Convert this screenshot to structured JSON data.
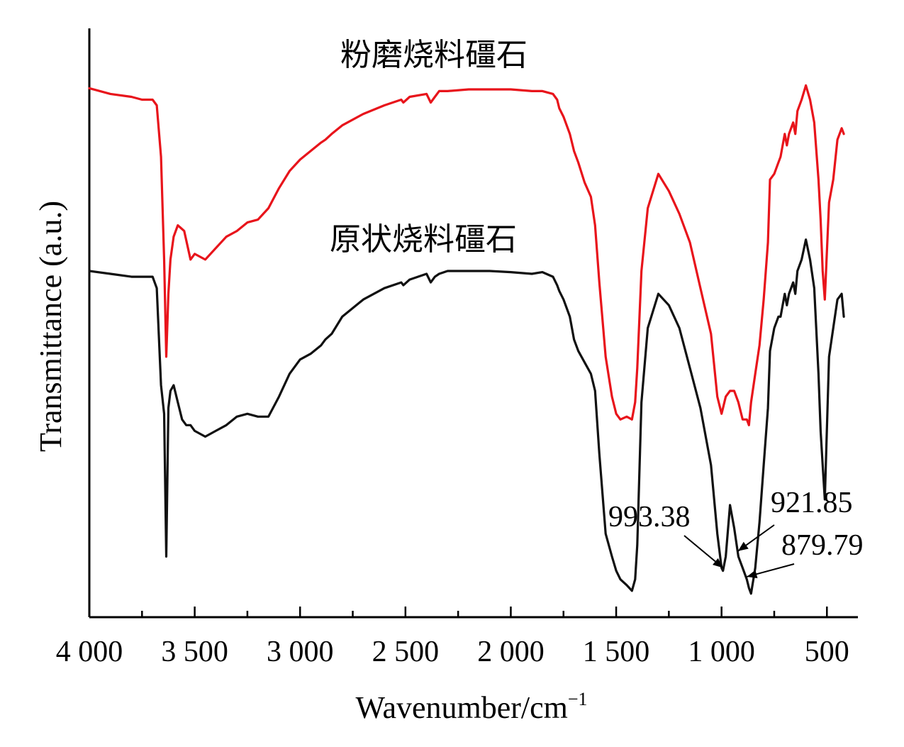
{
  "chart_data": {
    "type": "line",
    "title": "",
    "xlabel": "Wavenumber/cm",
    "xlabel_sup": "−1",
    "ylabel": "Transmittance (a.u.)",
    "xlim": [
      4000,
      400
    ],
    "x_reversed": true,
    "ylim": [
      0,
      1
    ],
    "y_ticks_shown": false,
    "grid": false,
    "legend": "none (series labeled inline)",
    "x_ticks": [
      {
        "value": 4000,
        "label": "4 000"
      },
      {
        "value": 3500,
        "label": "3 500"
      },
      {
        "value": 3000,
        "label": "3 000"
      },
      {
        "value": 2500,
        "label": "2 500"
      },
      {
        "value": 2000,
        "label": "2 000"
      },
      {
        "value": 1500,
        "label": "1 500"
      },
      {
        "value": 1000,
        "label": "1 000"
      },
      {
        "value": 500,
        "label": "500"
      }
    ],
    "series": [
      {
        "name": "粉磨烧料礓石",
        "color": "#e8141b",
        "x": [
          4000,
          3900,
          3800,
          3750,
          3700,
          3680,
          3660,
          3645,
          3635,
          3625,
          3615,
          3600,
          3580,
          3550,
          3520,
          3500,
          3450,
          3400,
          3350,
          3300,
          3250,
          3200,
          3150,
          3100,
          3050,
          3000,
          2950,
          2900,
          2880,
          2850,
          2800,
          2700,
          2600,
          2520,
          2510,
          2480,
          2400,
          2380,
          2360,
          2340,
          2300,
          2200,
          2100,
          2000,
          1900,
          1850,
          1800,
          1780,
          1770,
          1750,
          1720,
          1700,
          1680,
          1650,
          1620,
          1600,
          1580,
          1550,
          1520,
          1500,
          1480,
          1450,
          1425,
          1410,
          1400,
          1380,
          1350,
          1300,
          1250,
          1200,
          1150,
          1100,
          1050,
          1020,
          1000,
          993,
          980,
          960,
          940,
          920,
          900,
          880,
          870,
          860,
          840,
          820,
          800,
          780,
          770,
          750,
          730,
          720,
          700,
          690,
          680,
          660,
          650,
          640,
          620,
          600,
          580,
          560,
          540,
          530,
          520,
          510,
          490,
          470,
          450,
          430,
          420
        ],
        "y": [
          0.92,
          0.91,
          0.905,
          0.9,
          0.9,
          0.89,
          0.8,
          0.62,
          0.45,
          0.56,
          0.62,
          0.66,
          0.68,
          0.67,
          0.62,
          0.63,
          0.62,
          0.64,
          0.66,
          0.67,
          0.685,
          0.69,
          0.71,
          0.745,
          0.775,
          0.795,
          0.81,
          0.825,
          0.83,
          0.84,
          0.855,
          0.875,
          0.89,
          0.9,
          0.895,
          0.905,
          0.91,
          0.895,
          0.905,
          0.915,
          0.915,
          0.918,
          0.918,
          0.918,
          0.915,
          0.915,
          0.91,
          0.9,
          0.885,
          0.87,
          0.84,
          0.81,
          0.79,
          0.755,
          0.73,
          0.68,
          0.58,
          0.45,
          0.38,
          0.35,
          0.34,
          0.345,
          0.34,
          0.37,
          0.43,
          0.6,
          0.71,
          0.77,
          0.74,
          0.7,
          0.65,
          0.57,
          0.49,
          0.38,
          0.35,
          0.36,
          0.38,
          0.39,
          0.39,
          0.37,
          0.34,
          0.34,
          0.33,
          0.37,
          0.42,
          0.47,
          0.55,
          0.65,
          0.76,
          0.77,
          0.79,
          0.8,
          0.84,
          0.82,
          0.84,
          0.86,
          0.84,
          0.88,
          0.9,
          0.925,
          0.9,
          0.86,
          0.76,
          0.69,
          0.6,
          0.55,
          0.72,
          0.76,
          0.83,
          0.85,
          0.84
        ]
      },
      {
        "name": "原状烧料礓石",
        "color": "#111111",
        "x": [
          4000,
          3900,
          3800,
          3750,
          3700,
          3680,
          3660,
          3645,
          3635,
          3625,
          3615,
          3600,
          3580,
          3560,
          3540,
          3520,
          3500,
          3450,
          3400,
          3350,
          3300,
          3250,
          3200,
          3150,
          3100,
          3050,
          3000,
          2950,
          2900,
          2880,
          2850,
          2800,
          2700,
          2600,
          2520,
          2510,
          2480,
          2400,
          2380,
          2360,
          2340,
          2300,
          2200,
          2100,
          2000,
          1900,
          1850,
          1800,
          1780,
          1770,
          1750,
          1720,
          1700,
          1680,
          1650,
          1620,
          1600,
          1580,
          1550,
          1520,
          1500,
          1480,
          1450,
          1425,
          1410,
          1400,
          1380,
          1350,
          1300,
          1250,
          1200,
          1150,
          1100,
          1050,
          1020,
          1000,
          993,
          980,
          960,
          940,
          920,
          900,
          880,
          870,
          860,
          840,
          820,
          800,
          780,
          770,
          750,
          730,
          720,
          700,
          690,
          680,
          660,
          650,
          640,
          620,
          600,
          580,
          560,
          540,
          530,
          520,
          510,
          490,
          470,
          450,
          430,
          420
        ],
        "y": [
          0.6,
          0.595,
          0.59,
          0.59,
          0.59,
          0.57,
          0.4,
          0.35,
          0.1,
          0.36,
          0.39,
          0.4,
          0.37,
          0.34,
          0.33,
          0.33,
          0.32,
          0.31,
          0.32,
          0.33,
          0.345,
          0.35,
          0.345,
          0.345,
          0.38,
          0.42,
          0.445,
          0.455,
          0.47,
          0.48,
          0.49,
          0.52,
          0.55,
          0.57,
          0.58,
          0.575,
          0.585,
          0.595,
          0.58,
          0.59,
          0.595,
          0.6,
          0.6,
          0.6,
          0.598,
          0.595,
          0.598,
          0.59,
          0.575,
          0.565,
          0.55,
          0.52,
          0.48,
          0.46,
          0.44,
          0.42,
          0.39,
          0.28,
          0.14,
          0.1,
          0.075,
          0.06,
          0.05,
          0.04,
          0.06,
          0.12,
          0.37,
          0.5,
          0.56,
          0.54,
          0.5,
          0.43,
          0.36,
          0.26,
          0.14,
          0.08,
          0.075,
          0.1,
          0.19,
          0.15,
          0.1,
          0.08,
          0.06,
          0.045,
          0.035,
          0.08,
          0.16,
          0.26,
          0.36,
          0.46,
          0.5,
          0.52,
          0.52,
          0.56,
          0.54,
          0.56,
          0.58,
          0.56,
          0.6,
          0.62,
          0.655,
          0.62,
          0.57,
          0.42,
          0.32,
          0.26,
          0.2,
          0.45,
          0.5,
          0.55,
          0.56,
          0.52
        ]
      }
    ],
    "series_labels_on_chart": [
      {
        "series": 0,
        "text": "粉磨烧料礓石"
      },
      {
        "series": 1,
        "text": "原状烧料礓石"
      }
    ],
    "annotations": [
      {
        "text": "993.38",
        "x": 993.38
      },
      {
        "text": "921.85",
        "x": 921.85
      },
      {
        "text": "879.79",
        "x": 879.79
      }
    ]
  }
}
